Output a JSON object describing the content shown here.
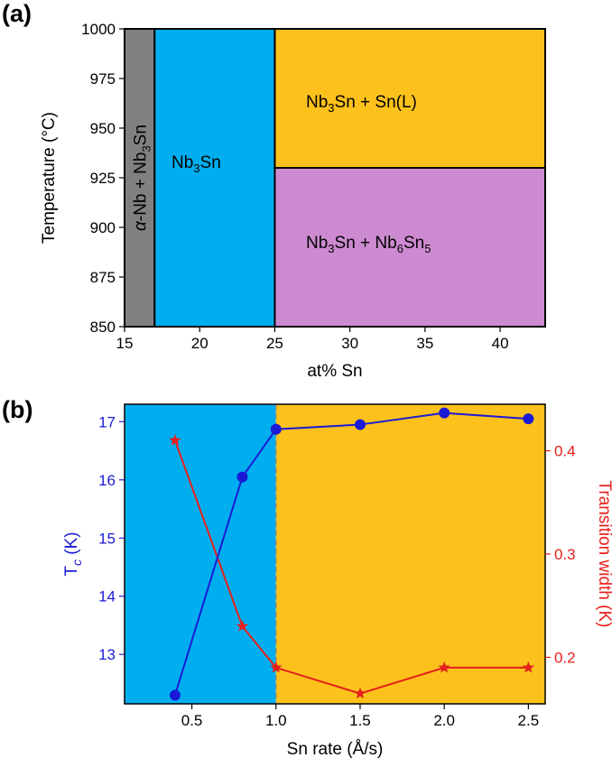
{
  "panel_a": {
    "label": "(a)",
    "xlabel": "at% Sn",
    "ylabel": "Temperature (°C)",
    "colors": {
      "alpha_nb": "#808080",
      "nb3sn": "#00aeef",
      "liquid": "#fcc21b",
      "nb6sn5": "#cc8ad0"
    }
  },
  "panel_b": {
    "label": "(b)",
    "xlabel": "Sn rate (Å/s)",
    "colors": {
      "left_bg": "#00aeef",
      "right_bg": "#fcc21b",
      "tc": "#1a1ad6",
      "width": "#e5201c"
    }
  },
  "chart_data": [
    {
      "type": "area",
      "xlim": [
        15,
        43
      ],
      "ylim": [
        850,
        1000
      ],
      "x_ticks": [
        15,
        20,
        25,
        30,
        35,
        40
      ],
      "y_ticks": [
        850,
        875,
        900,
        925,
        950,
        975,
        1000
      ],
      "regions": [
        {
          "name": "α-Nb + Nb3Sn",
          "label_parts": [
            [
              "α",
              "i"
            ],
            [
              "-Nb + Nb",
              ""
            ],
            [
              "3",
              "sub"
            ],
            [
              "Sn",
              ""
            ]
          ],
          "x": [
            15,
            17
          ],
          "y": [
            850,
            1000
          ],
          "color": "#808080",
          "label_rotated": true
        },
        {
          "name": "Nb3Sn",
          "label_parts": [
            [
              "Nb",
              ""
            ],
            [
              "3",
              "sub"
            ],
            [
              "Sn",
              ""
            ]
          ],
          "x": [
            17,
            25
          ],
          "y": [
            850,
            1000
          ],
          "color": "#00aeef"
        },
        {
          "name": "Nb3Sn + Sn(L)",
          "label_parts": [
            [
              "Nb",
              ""
            ],
            [
              "3",
              "sub"
            ],
            [
              "Sn + Sn(L)",
              ""
            ]
          ],
          "x": [
            25,
            43
          ],
          "y": [
            930,
            1000
          ],
          "color": "#fcc21b"
        },
        {
          "name": "Nb3Sn + Nb6Sn5",
          "label_parts": [
            [
              "Nb",
              ""
            ],
            [
              "3",
              "sub"
            ],
            [
              "Sn + Nb",
              ""
            ],
            [
              "6",
              "sub"
            ],
            [
              "Sn",
              ""
            ],
            [
              "5",
              "sub"
            ]
          ],
          "x": [
            25,
            43
          ],
          "y": [
            850,
            930
          ],
          "color": "#cc8ad0"
        }
      ]
    },
    {
      "type": "line",
      "xlim": [
        0.1,
        2.6
      ],
      "x_ticks": [
        0.5,
        1.0,
        1.5,
        2.0,
        2.5
      ],
      "divider_x": 1.0,
      "series": [
        {
          "name": "Tc (K)",
          "axis": "left",
          "ylim": [
            12.15,
            17.3
          ],
          "y_ticks": [
            13,
            14,
            15,
            16,
            17
          ],
          "marker": "circle",
          "color": "#1a1ad6",
          "x": [
            0.4,
            0.8,
            1.0,
            1.5,
            2.0,
            2.5
          ],
          "values": [
            12.3,
            16.05,
            16.87,
            16.95,
            17.15,
            17.05
          ]
        },
        {
          "name": "Transition width (K)",
          "axis": "right",
          "ylim": [
            0.155,
            0.445
          ],
          "y_ticks": [
            0.2,
            0.3,
            0.4
          ],
          "marker": "star",
          "color": "#e5201c",
          "x": [
            0.4,
            0.8,
            1.0,
            1.5,
            2.0,
            2.5
          ],
          "values": [
            0.41,
            0.23,
            0.19,
            0.165,
            0.19,
            0.19
          ]
        }
      ]
    }
  ]
}
